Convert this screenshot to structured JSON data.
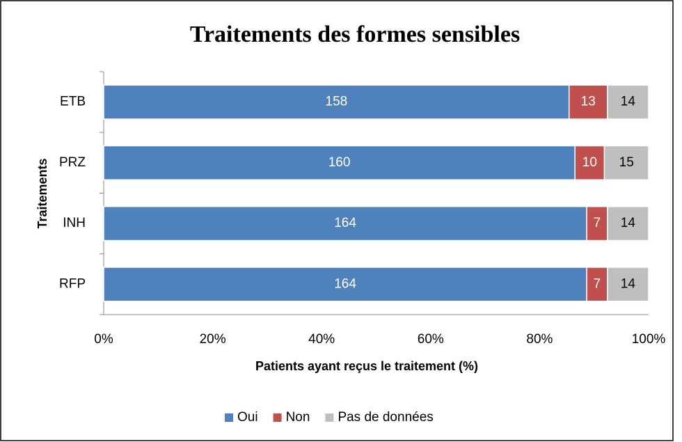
{
  "chart_data": {
    "type": "bar",
    "orientation": "horizontal",
    "stacked": "percent",
    "title": "Traitements des formes sensibles",
    "x_label": "Patients ayant reçus le traitement (%)",
    "y_label": "Traitements",
    "categories": [
      "ETB",
      "PRZ",
      "INH",
      "RFP"
    ],
    "series": [
      {
        "name": "Oui",
        "color": "#4f81bd",
        "label_color": "#ffffff",
        "values": [
          158,
          160,
          164,
          164
        ]
      },
      {
        "name": "Non",
        "color": "#c0504d",
        "label_color": "#ffffff",
        "values": [
          13,
          10,
          7,
          7
        ]
      },
      {
        "name": "Pas de données",
        "color": "#bfbfbf",
        "label_color": "#000000",
        "values": [
          14,
          15,
          14,
          14
        ]
      }
    ],
    "xlim": [
      0,
      100
    ],
    "xticks": [
      {
        "value": 0,
        "label": "0%"
      },
      {
        "value": 20,
        "label": "20%"
      },
      {
        "value": 40,
        "label": "40%"
      },
      {
        "value": 60,
        "label": "60%"
      },
      {
        "value": 80,
        "label": "80%"
      },
      {
        "value": 100,
        "label": "100%"
      }
    ],
    "legend": "bottom"
  }
}
